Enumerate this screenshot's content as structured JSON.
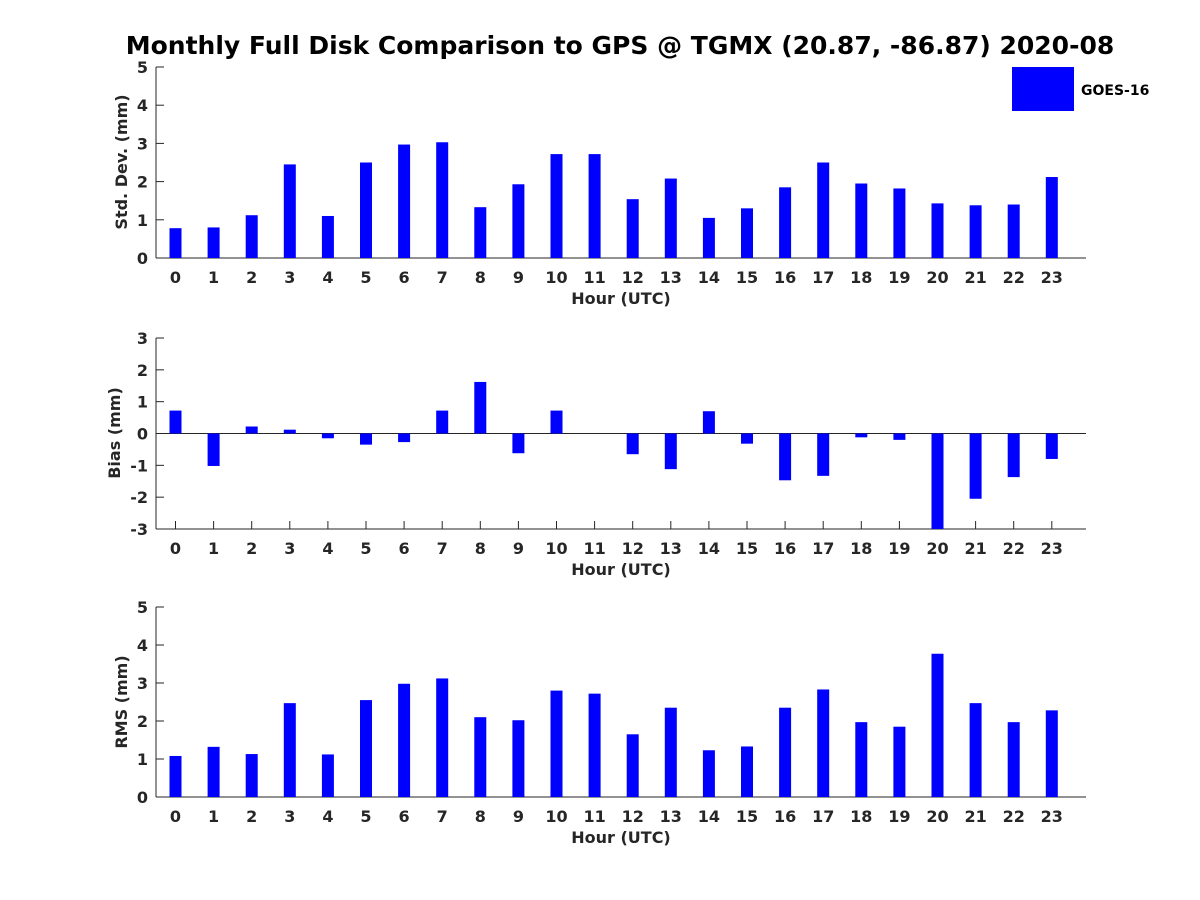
{
  "chart_data": [
    {
      "type": "bar",
      "title": "Monthly Full Disk Comparison to GPS @ TGMX (20.87, -86.87) 2020-08",
      "xlabel": "Hour (UTC)",
      "ylabel": "Std. Dev. (mm)",
      "ylim": [
        0,
        5
      ],
      "yticks": [
        0,
        1,
        2,
        3,
        4,
        5
      ],
      "categories": [
        "0",
        "1",
        "2",
        "3",
        "4",
        "5",
        "6",
        "7",
        "8",
        "9",
        "10",
        "11",
        "12",
        "13",
        "14",
        "15",
        "16",
        "17",
        "18",
        "19",
        "20",
        "21",
        "22",
        "23"
      ],
      "series": [
        {
          "name": "GOES-16",
          "color": "#0000ff",
          "values": [
            0.78,
            0.8,
            1.12,
            2.45,
            1.1,
            2.5,
            2.97,
            3.03,
            1.33,
            1.93,
            2.72,
            2.72,
            1.54,
            2.08,
            1.05,
            1.3,
            1.85,
            2.5,
            1.95,
            1.82,
            1.43,
            1.38,
            1.4,
            2.12
          ]
        }
      ],
      "legend": {
        "entries": [
          "GOES-16"
        ],
        "placement": "top-right"
      },
      "grid": false
    },
    {
      "type": "bar",
      "xlabel": "Hour (UTC)",
      "ylabel": "Bias (mm)",
      "ylim": [
        -3,
        3
      ],
      "yticks": [
        -3,
        -2,
        -1,
        0,
        1,
        2,
        3
      ],
      "categories": [
        "0",
        "1",
        "2",
        "3",
        "4",
        "5",
        "6",
        "7",
        "8",
        "9",
        "10",
        "11",
        "12",
        "13",
        "14",
        "15",
        "16",
        "17",
        "18",
        "19",
        "20",
        "21",
        "22",
        "23"
      ],
      "series": [
        {
          "name": "GOES-16",
          "color": "#0000ff",
          "values": [
            0.72,
            -1.02,
            0.22,
            0.12,
            -0.15,
            -0.35,
            -0.27,
            0.72,
            1.62,
            -0.62,
            0.72,
            0.0,
            -0.65,
            -1.12,
            0.7,
            -0.32,
            -1.47,
            -1.33,
            -0.12,
            -0.2,
            -3.0,
            -2.05,
            -1.37,
            -0.8
          ]
        }
      ],
      "grid": false
    },
    {
      "type": "bar",
      "xlabel": "Hour (UTC)",
      "ylabel": "RMS (mm)",
      "ylim": [
        0,
        5
      ],
      "yticks": [
        0,
        1,
        2,
        3,
        4,
        5
      ],
      "categories": [
        "0",
        "1",
        "2",
        "3",
        "4",
        "5",
        "6",
        "7",
        "8",
        "9",
        "10",
        "11",
        "12",
        "13",
        "14",
        "15",
        "16",
        "17",
        "18",
        "19",
        "20",
        "21",
        "22",
        "23"
      ],
      "series": [
        {
          "name": "GOES-16",
          "color": "#0000ff",
          "values": [
            1.08,
            1.32,
            1.13,
            2.47,
            1.12,
            2.55,
            2.98,
            3.12,
            2.1,
            2.02,
            2.8,
            2.72,
            1.65,
            2.35,
            1.23,
            1.33,
            2.35,
            2.83,
            1.97,
            1.85,
            3.77,
            2.47,
            1.97,
            2.28
          ]
        }
      ],
      "grid": false
    }
  ]
}
